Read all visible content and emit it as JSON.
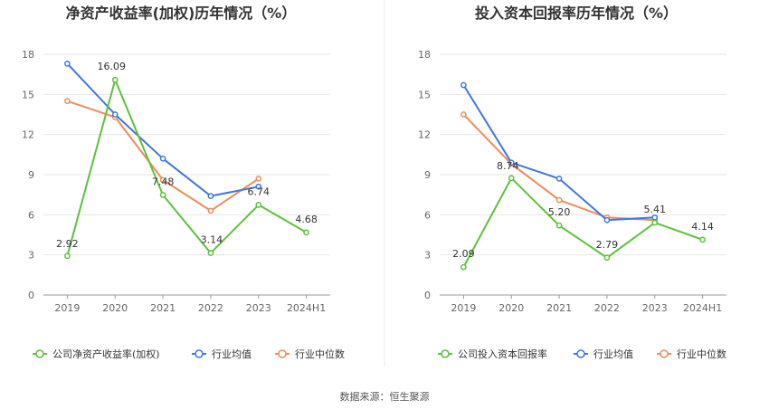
{
  "footer": {
    "source": "数据来源：恒生聚源"
  },
  "chart_data": [
    {
      "type": "line",
      "title": "净资产收益率(加权)历年情况（%）",
      "categories": [
        "2019",
        "2020",
        "2021",
        "2022",
        "2023",
        "2024H1"
      ],
      "yticks": [
        "0",
        "3",
        "6",
        "9",
        "12",
        "15",
        "18"
      ],
      "ylim": [
        0,
        18
      ],
      "grid": true,
      "legend_position": "bottom-left",
      "series": [
        {
          "name": "公司净资产收益率(加权)",
          "color": "#5cc23a",
          "values": [
            2.92,
            16.09,
            7.48,
            3.14,
            6.74,
            4.68
          ],
          "labels": [
            "2.92",
            "16.09",
            "7.48",
            "3.14",
            "6.74",
            "4.68"
          ]
        },
        {
          "name": "行业均值",
          "color": "#3f78db",
          "values": [
            17.3,
            13.5,
            10.2,
            7.4,
            8.1,
            null
          ]
        },
        {
          "name": "行业中位数",
          "color": "#f08c5a",
          "values": [
            14.5,
            13.3,
            8.6,
            6.3,
            8.7,
            null
          ]
        }
      ]
    },
    {
      "type": "line",
      "title": "投入资本回报率历年情况（%）",
      "categories": [
        "2019",
        "2020",
        "2021",
        "2022",
        "2023",
        "2024H1"
      ],
      "yticks": [
        "0",
        "3",
        "6",
        "9",
        "12",
        "15",
        "18"
      ],
      "ylim": [
        0,
        18
      ],
      "grid": true,
      "legend_position": "bottom-left",
      "series": [
        {
          "name": "公司投入资本回报率",
          "color": "#5cc23a",
          "values": [
            2.09,
            8.74,
            5.2,
            2.79,
            5.41,
            4.14
          ],
          "labels": [
            "2.09",
            "8.74",
            "5.20",
            "2.79",
            "5.41",
            "4.14"
          ]
        },
        {
          "name": "行业均值",
          "color": "#3f78db",
          "values": [
            15.7,
            9.9,
            8.7,
            5.6,
            5.8,
            null
          ]
        },
        {
          "name": "行业中位数",
          "color": "#f08c5a",
          "values": [
            13.5,
            9.8,
            7.1,
            5.8,
            5.6,
            null
          ]
        }
      ]
    }
  ]
}
